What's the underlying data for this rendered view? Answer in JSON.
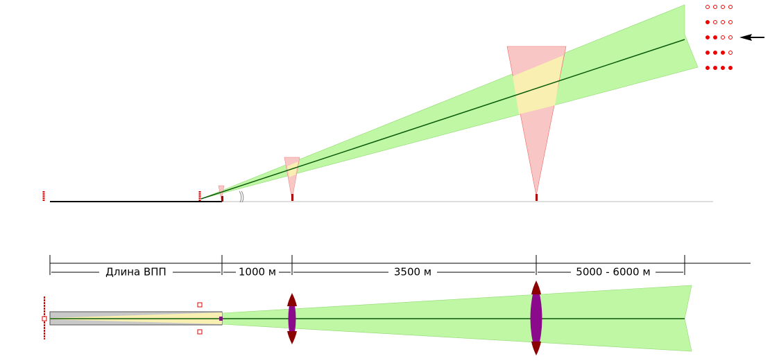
{
  "dimensions": {
    "runway_length": "Длина ВПП",
    "segment_1": "1000 м",
    "segment_2": "3500 м",
    "segment_3": "5000 - 6000 м"
  }
}
